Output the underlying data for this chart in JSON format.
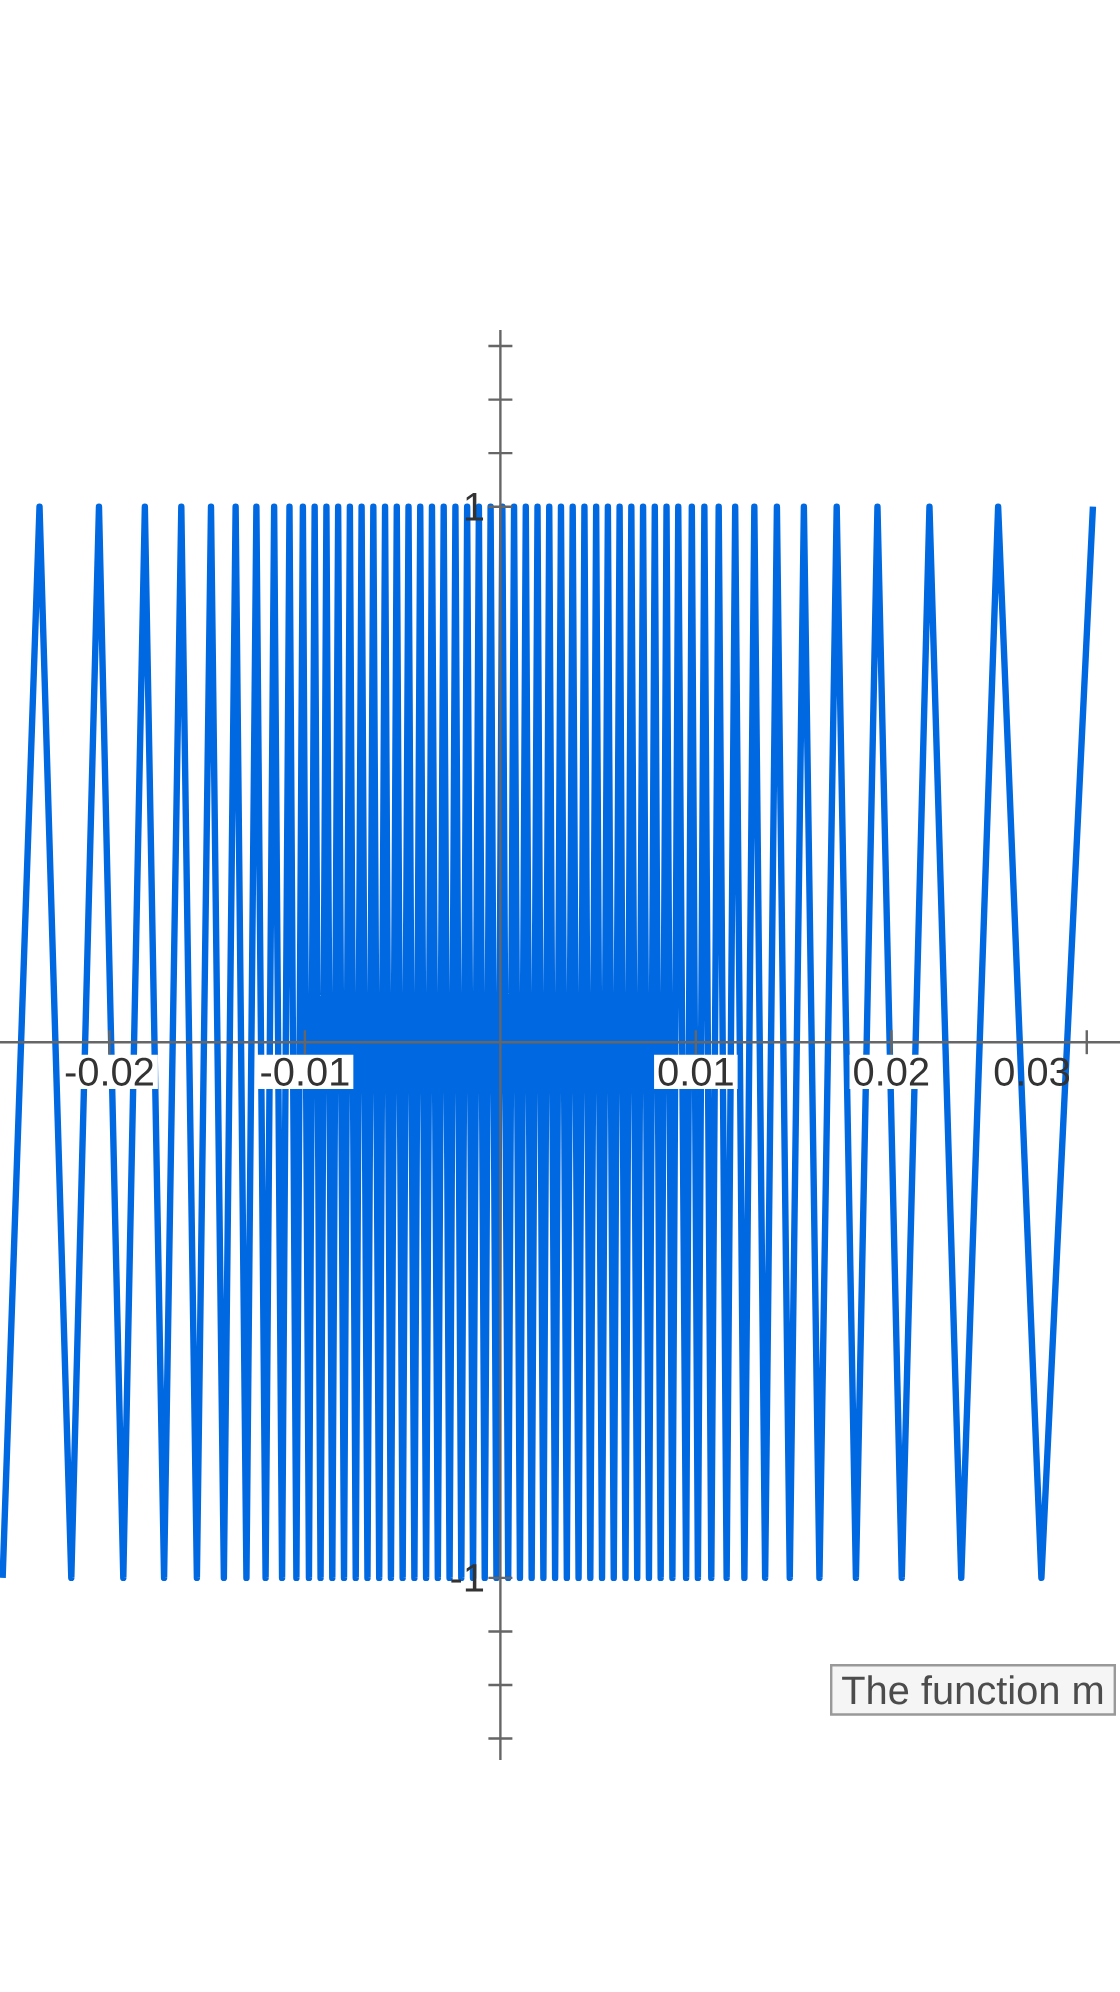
{
  "chart_data": {
    "type": "line",
    "color": "#0068e0",
    "x": [
      -0.025465,
      -0.023578,
      -0.021952,
      -0.020536,
      -0.019292,
      -0.018189,
      -0.017206,
      -0.016324,
      -0.015527,
      -0.014805,
      -0.014147,
      -0.013545,
      -0.012992,
      -0.012483,
      -0.012012,
      -0.011575,
      -0.011169,
      -0.01079,
      -0.010436,
      -0.010105,
      -0.009794,
      -0.009502,
      -0.0092,
      -0.0089,
      -0.0086,
      -0.0083,
      -0.008,
      -0.0077,
      -0.0074,
      -0.0071,
      -0.0068,
      -0.0065,
      -0.0062,
      -0.0059,
      -0.0056,
      -0.0053,
      -0.005,
      -0.0047,
      -0.0044,
      -0.0041,
      -0.0038,
      -0.0035,
      -0.0032,
      -0.0029,
      -0.0026,
      -0.0023,
      -0.002,
      -0.0017,
      -0.0014,
      -0.0011,
      -0.0008,
      -0.0005,
      -0.0002,
      0.0001,
      0.0004,
      0.0007,
      0.001,
      0.0013,
      0.0016,
      0.0019,
      0.0022,
      0.0025,
      0.0028,
      0.0031,
      0.0034,
      0.0037,
      0.004,
      0.0043,
      0.0046,
      0.0049,
      0.0052,
      0.0055,
      0.0058,
      0.0061,
      0.0064,
      0.0067,
      0.007,
      0.0073,
      0.0076,
      0.0079,
      0.0082,
      0.0085,
      0.0088,
      0.0091,
      0.009502,
      0.009794,
      0.010105,
      0.010436,
      0.01079,
      0.011169,
      0.011575,
      0.012012,
      0.012483,
      0.012992,
      0.013545,
      0.014147,
      0.014805,
      0.015527,
      0.016324,
      0.017206,
      0.018189,
      0.019292,
      0.020536,
      0.021952,
      0.023578,
      0.025465,
      0.027679,
      0.030315
    ],
    "values": [
      -1,
      1,
      -1,
      1,
      -1,
      1,
      -1,
      1,
      -1,
      1,
      -1,
      1,
      -1,
      1,
      -1,
      1,
      -1,
      1,
      -1,
      1,
      -1,
      1,
      -1,
      1,
      -1,
      1,
      -1,
      1,
      -1,
      1,
      -1,
      1,
      -1,
      1,
      -1,
      1,
      -1,
      1,
      -1,
      1,
      -1,
      1,
      -1,
      1,
      -1,
      1,
      -1,
      1,
      -1,
      1,
      -1,
      1,
      -1,
      1,
      -1,
      1,
      -1,
      1,
      -1,
      1,
      -1,
      1,
      -1,
      1,
      -1,
      1,
      -1,
      1,
      -1,
      1,
      -1,
      1,
      -1,
      1,
      -1,
      1,
      -1,
      1,
      -1,
      1,
      -1,
      1,
      -1,
      1,
      -1,
      1,
      -1,
      1,
      -1,
      1,
      -1,
      1,
      -1,
      1,
      -1,
      1,
      -1,
      1,
      -1,
      1,
      -1,
      1,
      -1,
      1,
      -1,
      1,
      -1,
      1
    ],
    "xlim": [
      -0.0256,
      0.0317
    ],
    "ylim": [
      -1.34,
      1.33
    ],
    "xticks": [
      {
        "value": -0.02,
        "label": "-0.02"
      },
      {
        "value": -0.01,
        "label": "-0.01"
      },
      {
        "value": 0.01,
        "label": "0.01"
      },
      {
        "value": 0.02,
        "label": "0.02"
      },
      {
        "value": 0.03,
        "label": "0.03"
      }
    ],
    "yticks": [
      {
        "value": -1.3,
        "label": null
      },
      {
        "value": -1.2,
        "label": null
      },
      {
        "value": -1.1,
        "label": null
      },
      -1,
      1,
      {
        "value": 1.1,
        "label": null
      },
      {
        "value": 1.2,
        "label": null
      },
      {
        "value": 1.3,
        "label": null
      }
    ],
    "annotations": [
      "The function m"
    ]
  }
}
